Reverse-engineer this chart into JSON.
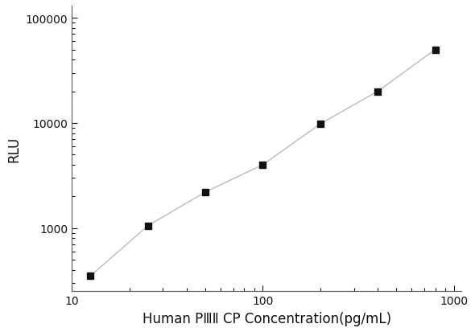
{
  "x": [
    12.5,
    25,
    50,
    100,
    200,
    400,
    800
  ],
  "y": [
    350,
    1050,
    2200,
    4000,
    9800,
    20000,
    50000
  ],
  "line_color": "#bbbbbb",
  "marker_color": "#111111",
  "marker": "s",
  "marker_size": 6,
  "line_width": 1.0,
  "xlabel": "Human PⅢⅡ CP Concentration(pg/mL)",
  "ylabel": "RLU",
  "xlim": [
    10,
    1100
  ],
  "ylim": [
    250,
    130000
  ],
  "xticks": [
    10,
    100,
    1000
  ],
  "yticks": [
    1000,
    10000,
    100000
  ],
  "xtick_labels": [
    "10",
    "100",
    "1000"
  ],
  "ytick_labels": [
    "1000",
    "10000",
    "100000"
  ],
  "background_color": "#ffffff",
  "label_fontsize": 12,
  "tick_fontsize": 10
}
